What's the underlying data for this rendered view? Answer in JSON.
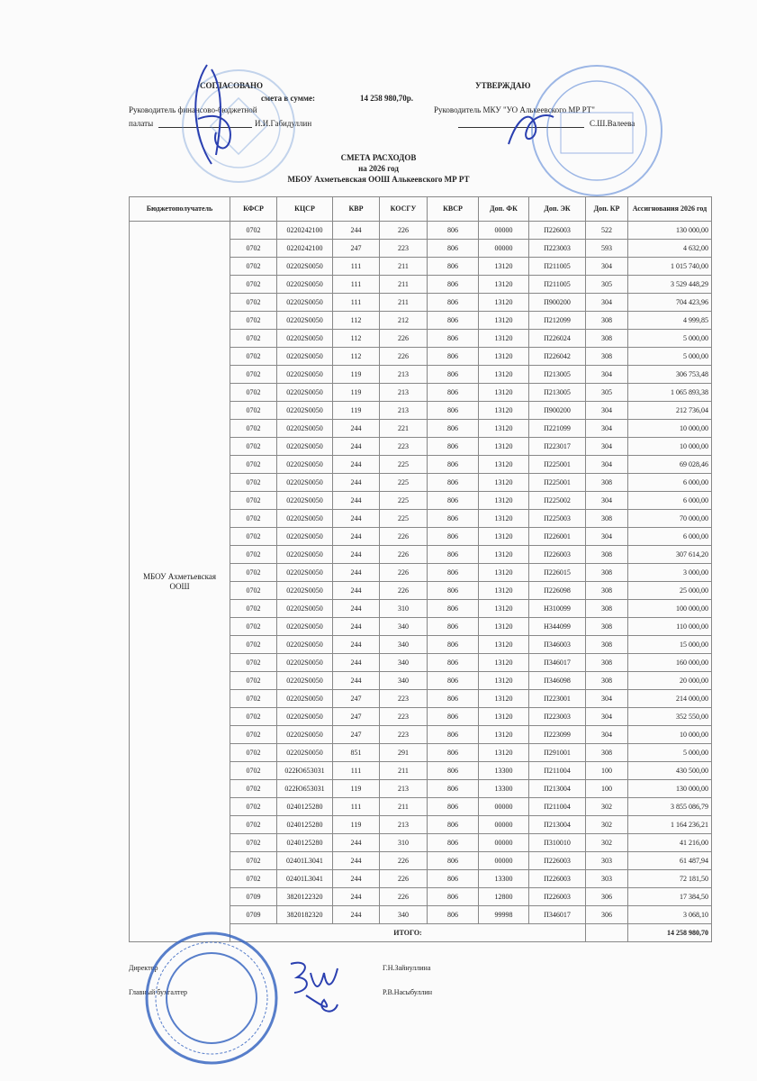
{
  "header": {
    "agreed": "СОГЛАСОВАНО",
    "sum_label": "смета в сумме:",
    "sum_value": "14 258 980,70р.",
    "left_role_line1": "Руководитель финансово-бюджетной",
    "left_role_line2": "палаты",
    "left_name": "И.И.Габидуллин",
    "approve": "УТВЕРЖДАЮ",
    "right_role": "Руководитель МКУ \"УО Алькеевского МР РТ\"",
    "right_name": "С.Ш.Валеева"
  },
  "title": {
    "line1": "СМЕТА  РАСХОДОВ",
    "line2": "на 2026 год",
    "line3": "МБОУ Ахметьевская ООШ Алькеевского МР РТ"
  },
  "table": {
    "columns": [
      "Бюджетополучатель",
      "КФСР",
      "КЦСР",
      "КВР",
      "КОСГУ",
      "КВСР",
      "Доп. ФК",
      "Доп. ЭК",
      "Доп. КР",
      "Ассигнования 2026 год"
    ],
    "recipient": "МБОУ Ахметьевская ООШ",
    "rows": [
      [
        "0702",
        "0220242100",
        "244",
        "226",
        "806",
        "00000",
        "П226003",
        "522",
        "130 000,00"
      ],
      [
        "0702",
        "0220242100",
        "247",
        "223",
        "806",
        "00000",
        "П223003",
        "593",
        "4 632,00"
      ],
      [
        "0702",
        "02202S0050",
        "111",
        "211",
        "806",
        "13120",
        "П211005",
        "304",
        "1 015 740,00"
      ],
      [
        "0702",
        "02202S0050",
        "111",
        "211",
        "806",
        "13120",
        "П211005",
        "305",
        "3 529 448,29"
      ],
      [
        "0702",
        "02202S0050",
        "111",
        "211",
        "806",
        "13120",
        "П900200",
        "304",
        "704 423,96"
      ],
      [
        "0702",
        "02202S0050",
        "112",
        "212",
        "806",
        "13120",
        "П212099",
        "308",
        "4 999,85"
      ],
      [
        "0702",
        "02202S0050",
        "112",
        "226",
        "806",
        "13120",
        "П226024",
        "308",
        "5 000,00"
      ],
      [
        "0702",
        "02202S0050",
        "112",
        "226",
        "806",
        "13120",
        "П226042",
        "308",
        "5 000,00"
      ],
      [
        "0702",
        "02202S0050",
        "119",
        "213",
        "806",
        "13120",
        "П213005",
        "304",
        "306 753,48"
      ],
      [
        "0702",
        "02202S0050",
        "119",
        "213",
        "806",
        "13120",
        "П213005",
        "305",
        "1 065 893,38"
      ],
      [
        "0702",
        "02202S0050",
        "119",
        "213",
        "806",
        "13120",
        "П900200",
        "304",
        "212 736,04"
      ],
      [
        "0702",
        "02202S0050",
        "244",
        "221",
        "806",
        "13120",
        "П221099",
        "304",
        "10 000,00"
      ],
      [
        "0702",
        "02202S0050",
        "244",
        "223",
        "806",
        "13120",
        "П223017",
        "304",
        "10 000,00"
      ],
      [
        "0702",
        "02202S0050",
        "244",
        "225",
        "806",
        "13120",
        "П225001",
        "304",
        "69 028,46"
      ],
      [
        "0702",
        "02202S0050",
        "244",
        "225",
        "806",
        "13120",
        "П225001",
        "308",
        "6 000,00"
      ],
      [
        "0702",
        "02202S0050",
        "244",
        "225",
        "806",
        "13120",
        "П225002",
        "304",
        "6 000,00"
      ],
      [
        "0702",
        "02202S0050",
        "244",
        "225",
        "806",
        "13120",
        "П225003",
        "308",
        "70 000,00"
      ],
      [
        "0702",
        "02202S0050",
        "244",
        "226",
        "806",
        "13120",
        "П226001",
        "304",
        "6 000,00"
      ],
      [
        "0702",
        "02202S0050",
        "244",
        "226",
        "806",
        "13120",
        "П226003",
        "308",
        "307 614,20"
      ],
      [
        "0702",
        "02202S0050",
        "244",
        "226",
        "806",
        "13120",
        "П226015",
        "308",
        "3 000,00"
      ],
      [
        "0702",
        "02202S0050",
        "244",
        "226",
        "806",
        "13120",
        "П226098",
        "308",
        "25 000,00"
      ],
      [
        "0702",
        "02202S0050",
        "244",
        "310",
        "806",
        "13120",
        "Н310099",
        "308",
        "100 000,00"
      ],
      [
        "0702",
        "02202S0050",
        "244",
        "340",
        "806",
        "13120",
        "Н344099",
        "308",
        "110 000,00"
      ],
      [
        "0702",
        "02202S0050",
        "244",
        "340",
        "806",
        "13120",
        "П346003",
        "308",
        "15 000,00"
      ],
      [
        "0702",
        "02202S0050",
        "244",
        "340",
        "806",
        "13120",
        "П346017",
        "308",
        "160 000,00"
      ],
      [
        "0702",
        "02202S0050",
        "244",
        "340",
        "806",
        "13120",
        "П346098",
        "308",
        "20 000,00"
      ],
      [
        "0702",
        "02202S0050",
        "247",
        "223",
        "806",
        "13120",
        "П223001",
        "304",
        "214 000,00"
      ],
      [
        "0702",
        "02202S0050",
        "247",
        "223",
        "806",
        "13120",
        "П223003",
        "304",
        "352 550,00"
      ],
      [
        "0702",
        "02202S0050",
        "247",
        "223",
        "806",
        "13120",
        "П223099",
        "304",
        "10 000,00"
      ],
      [
        "0702",
        "02202S0050",
        "851",
        "291",
        "806",
        "13120",
        "П291001",
        "308",
        "5 000,00"
      ],
      [
        "0702",
        "022Ю653031",
        "111",
        "211",
        "806",
        "13300",
        "П211004",
        "100",
        "430 500,00"
      ],
      [
        "0702",
        "022Ю653031",
        "119",
        "213",
        "806",
        "13300",
        "П213004",
        "100",
        "130 000,00"
      ],
      [
        "0702",
        "0240125280",
        "111",
        "211",
        "806",
        "00000",
        "П211004",
        "302",
        "3 855 086,79"
      ],
      [
        "0702",
        "0240125280",
        "119",
        "213",
        "806",
        "00000",
        "П213004",
        "302",
        "1 164 236,21"
      ],
      [
        "0702",
        "0240125280",
        "244",
        "310",
        "806",
        "00000",
        "П310010",
        "302",
        "41 216,00"
      ],
      [
        "0702",
        "02401L3041",
        "244",
        "226",
        "806",
        "00000",
        "П226003",
        "303",
        "61 487,94"
      ],
      [
        "0702",
        "02401L3041",
        "244",
        "226",
        "806",
        "13300",
        "П226003",
        "303",
        "72 181,50"
      ],
      [
        "0709",
        "3820122320",
        "244",
        "226",
        "806",
        "12800",
        "П226003",
        "306",
        "17 384,50"
      ],
      [
        "0709",
        "3820182320",
        "244",
        "340",
        "806",
        "99998",
        "П346017",
        "306",
        "3 068,10"
      ]
    ],
    "total_label": "ИТОГО:",
    "total_value": "14 258 980,70"
  },
  "footer": {
    "director_label": "Директор",
    "director_name": "Г.Н.Зайнуллина",
    "accountant_label": "Главный бухгалтер",
    "accountant_name": "Р.В.Насыбуллин"
  },
  "colors": {
    "stamp": "#2f5fbf",
    "signature": "#2a3fb0",
    "ink": "#222222"
  }
}
